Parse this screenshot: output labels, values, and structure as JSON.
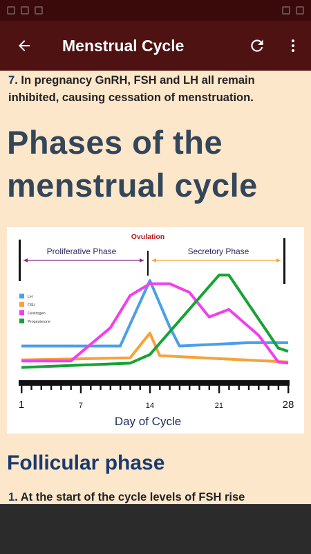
{
  "appbar": {
    "title": "Menstrual Cycle",
    "back_icon": "arrow-left-icon",
    "refresh_icon": "refresh-icon",
    "menu_icon": "more-vert-icon"
  },
  "content": {
    "p1_num": "7",
    "p1_text": ". In pregnancy GnRH, FSH and LH all remain inhibited, causing cessation of menstruation.",
    "heading1": "Phases of the menstrual cycle",
    "heading2": "Follicular phase",
    "p2_num": "1",
    "p2_text": ". At the start of the cycle levels of FSH rise"
  },
  "chart_data": {
    "type": "line",
    "xlabel": "Day of Cycle",
    "ticks": [
      "1",
      "7",
      "14",
      "21",
      "28"
    ],
    "xlim": [
      1,
      28
    ],
    "annotations": {
      "ovulation": "Ovulation",
      "phase_left": "Proliferative Phase",
      "phase_right": "Secretory Phase"
    },
    "series": [
      {
        "name": "LH",
        "color": "#4a9fe8",
        "x": [
          1,
          11,
          14,
          16,
          17,
          24,
          28
        ],
        "y": [
          2.8,
          2.8,
          8.9,
          4.6,
          2.8,
          3.1,
          3.1
        ]
      },
      {
        "name": "FSH",
        "color": "#f4a33a",
        "x": [
          1,
          12,
          14,
          15,
          28
        ],
        "y": [
          1.5,
          1.7,
          4.0,
          1.9,
          1.3
        ]
      },
      {
        "name": "Oestrogen",
        "color": "#f33ef0",
        "x": [
          1,
          6,
          10,
          12,
          14,
          16,
          18,
          20,
          22,
          25,
          27,
          28
        ],
        "y": [
          1.4,
          1.4,
          4.5,
          7.5,
          8.6,
          8.6,
          7.8,
          5.5,
          6.2,
          3.8,
          1.3,
          1.2
        ]
      },
      {
        "name": "Progesterone",
        "color": "#16a334",
        "x": [
          1,
          12,
          14,
          21,
          22,
          27,
          28
        ],
        "y": [
          0.8,
          1.2,
          2.0,
          9.4,
          9.4,
          2.6,
          2.3
        ]
      }
    ]
  }
}
